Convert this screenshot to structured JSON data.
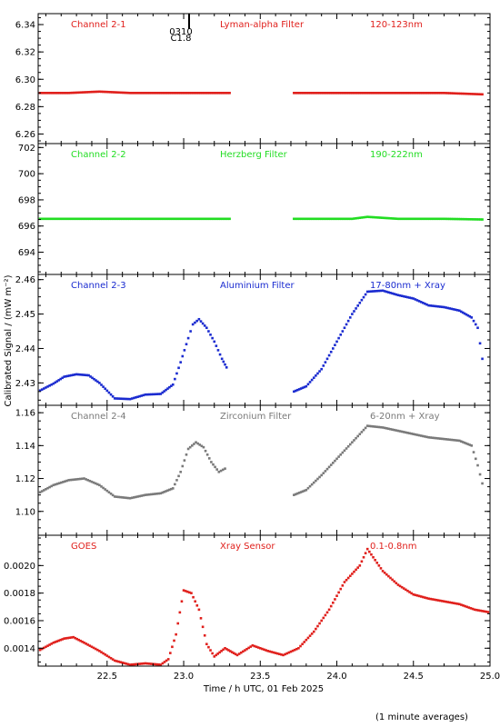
{
  "y_axis_label": "Calibrated Signal / (mW m⁻²)",
  "x_axis_label": "Time / h UTC, 01 Feb 2025",
  "footnote": "(1 minute averages)",
  "flare_event": {
    "time": "0310",
    "class": "C1.8",
    "x": 23.02
  },
  "colors": {
    "red": "#e0201c",
    "green": "#22dd22",
    "blue": "#1a2bd0",
    "grey": "#7a7a7a",
    "axis": "#000000"
  },
  "chart_data": [
    {
      "type": "scatter",
      "channel": "Channel 2-1",
      "filter": "Lyman-alpha Filter",
      "band": "120-123nm",
      "color": "#e0201c",
      "xlim": [
        22.05,
        25.0
      ],
      "ylim": [
        6.253,
        6.348
      ],
      "yticks": [
        6.26,
        6.28,
        6.3,
        6.32,
        6.34
      ],
      "series": [
        {
          "x": [
            22.05,
            22.25,
            22.45,
            22.65,
            22.85,
            23.05,
            23.3
          ],
          "y": [
            6.29,
            6.29,
            6.291,
            6.29,
            6.29,
            6.29,
            6.29
          ]
        },
        {
          "x": [
            23.72,
            23.9,
            24.1,
            24.3,
            24.5,
            24.7,
            24.95
          ],
          "y": [
            6.29,
            6.29,
            6.29,
            6.29,
            6.29,
            6.29,
            6.289
          ]
        }
      ]
    },
    {
      "type": "scatter",
      "channel": "Channel 2-2",
      "filter": "Herzberg Filter",
      "band": "190-222nm",
      "color": "#22dd22",
      "xlim": [
        22.05,
        25.0
      ],
      "ylim": [
        692.3,
        702.3
      ],
      "yticks": [
        694,
        696,
        698,
        700,
        702
      ],
      "series": [
        {
          "x": [
            22.05,
            22.3,
            22.6,
            22.9,
            23.1,
            23.3
          ],
          "y": [
            696.55,
            696.55,
            696.55,
            696.55,
            696.55,
            696.55
          ]
        },
        {
          "x": [
            23.72,
            23.9,
            24.1,
            24.2,
            24.4,
            24.7,
            24.95
          ],
          "y": [
            696.55,
            696.55,
            696.55,
            696.7,
            696.55,
            696.55,
            696.5
          ]
        }
      ]
    },
    {
      "type": "scatter",
      "channel": "Channel 2-3",
      "filter": "Aluminium Filter",
      "band": "17-80nm + Xray",
      "color": "#1a2bd0",
      "xlim": [
        22.05,
        25.0
      ],
      "ylim": [
        2.4235,
        2.4615
      ],
      "yticks": [
        2.43,
        2.44,
        2.45,
        2.46
      ],
      "series": [
        {
          "x": [
            22.05,
            22.15,
            22.22,
            22.3,
            22.38,
            22.45,
            22.55,
            22.65,
            22.75,
            22.85,
            22.93,
            22.98,
            23.03,
            23.06,
            23.1,
            23.15,
            23.2,
            23.25,
            23.28
          ],
          "y": [
            2.4275,
            2.4298,
            2.4318,
            2.4325,
            2.4322,
            2.43,
            2.4255,
            2.4253,
            2.4266,
            2.4268,
            2.4295,
            2.436,
            2.443,
            2.447,
            2.4485,
            2.446,
            2.442,
            2.437,
            2.4345
          ]
        },
        {
          "x": [
            23.72,
            23.8,
            23.9,
            24.0,
            24.1,
            24.2,
            24.3,
            24.4,
            24.5,
            24.6,
            24.7,
            24.8,
            24.88,
            24.92,
            24.95
          ],
          "y": [
            2.4275,
            2.429,
            2.434,
            2.442,
            2.45,
            2.4565,
            2.4568,
            2.4555,
            2.4545,
            2.4525,
            2.452,
            2.451,
            2.449,
            2.446,
            2.437
          ]
        }
      ]
    },
    {
      "type": "scatter",
      "channel": "Channel 2-4",
      "filter": "Zirconium Filter",
      "band": "6-20nm + Xray",
      "color": "#7a7a7a",
      "xlim": [
        22.05,
        25.0
      ],
      "ylim": [
        1.0855,
        1.1645
      ],
      "yticks": [
        1.1,
        1.12,
        1.14,
        1.16
      ],
      "series": [
        {
          "x": [
            22.05,
            22.15,
            22.25,
            22.35,
            22.45,
            22.55,
            22.65,
            22.75,
            22.85,
            22.93,
            22.98,
            23.03,
            23.08,
            23.13,
            23.18,
            23.23,
            23.27
          ],
          "y": [
            1.111,
            1.116,
            1.119,
            1.12,
            1.116,
            1.109,
            1.108,
            1.11,
            1.111,
            1.114,
            1.124,
            1.138,
            1.142,
            1.139,
            1.13,
            1.124,
            1.126
          ]
        },
        {
          "x": [
            23.72,
            23.8,
            23.9,
            24.0,
            24.1,
            24.2,
            24.3,
            24.4,
            24.5,
            24.6,
            24.7,
            24.8,
            24.88,
            24.92,
            24.95
          ],
          "y": [
            1.11,
            1.113,
            1.122,
            1.132,
            1.142,
            1.152,
            1.151,
            1.149,
            1.147,
            1.145,
            1.144,
            1.143,
            1.14,
            1.128,
            1.117
          ]
        }
      ]
    },
    {
      "type": "scatter",
      "channel": "GOES",
      "filter": "Xray Sensor",
      "band": "0.1-0.8nm",
      "color": "#e0201c",
      "xlim": [
        22.05,
        25.0
      ],
      "ylim": [
        0.00127,
        0.00222
      ],
      "yticks": [
        0.0014,
        0.0016,
        0.0018,
        0.002
      ],
      "xticks": [
        22.5,
        23.0,
        23.5,
        24.0,
        24.5,
        25.0
      ],
      "series": [
        {
          "x": [
            22.05,
            22.15,
            22.22,
            22.28,
            22.35,
            22.45,
            22.55,
            22.65,
            22.75,
            22.85,
            22.9,
            22.95,
            23.0,
            23.05,
            23.1,
            23.15,
            23.2,
            23.27,
            23.35,
            23.45,
            23.55,
            23.65,
            23.75,
            23.85,
            23.95,
            24.05,
            24.15,
            24.2,
            24.3,
            24.4,
            24.5,
            24.6,
            24.7,
            24.8,
            24.9,
            25.0
          ],
          "y": [
            0.00138,
            0.00144,
            0.00147,
            0.00148,
            0.00144,
            0.00138,
            0.00131,
            0.00128,
            0.00129,
            0.00128,
            0.00132,
            0.0015,
            0.00182,
            0.0018,
            0.00168,
            0.00143,
            0.00134,
            0.0014,
            0.00135,
            0.00142,
            0.00138,
            0.00135,
            0.0014,
            0.00152,
            0.00168,
            0.00188,
            0.002,
            0.00212,
            0.00196,
            0.00186,
            0.00179,
            0.00176,
            0.00174,
            0.00172,
            0.00168,
            0.00166
          ]
        }
      ]
    }
  ]
}
